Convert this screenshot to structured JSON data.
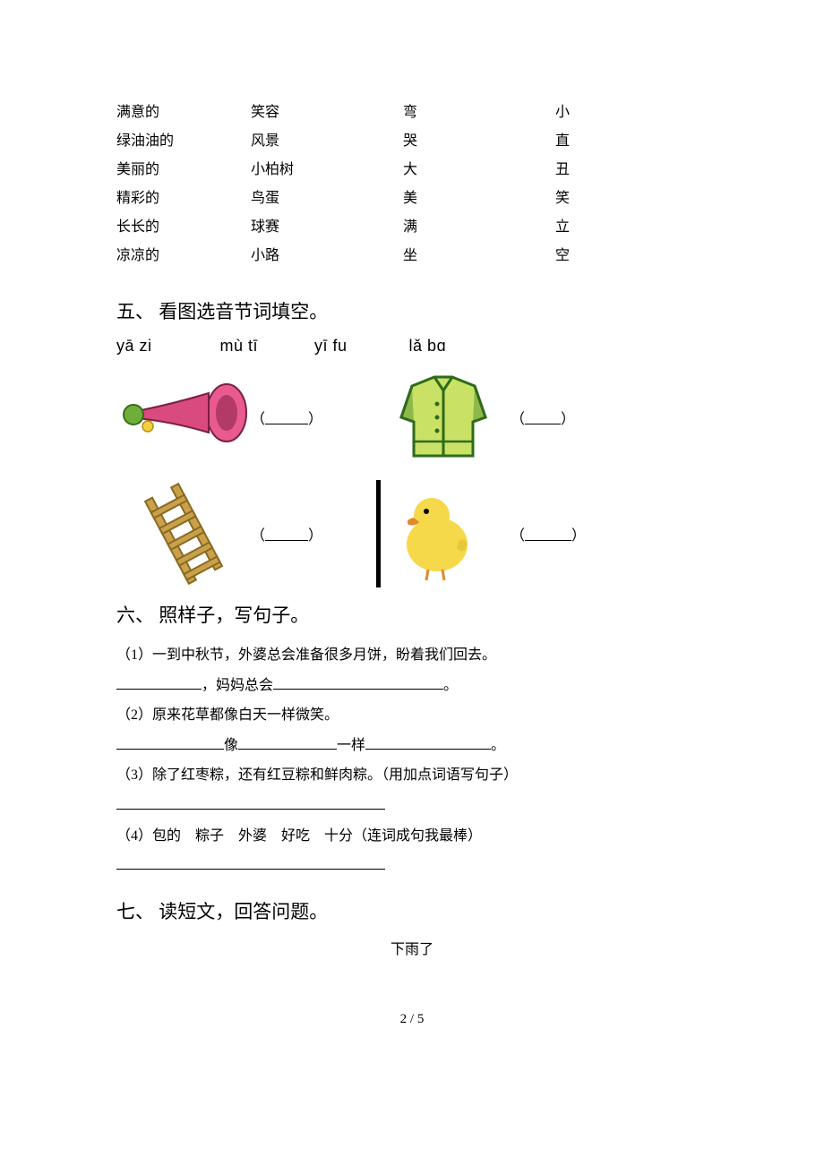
{
  "wordTable": {
    "rows": [
      {
        "c1": "满意的",
        "c2": "笑容",
        "c3": "弯",
        "c4": "小"
      },
      {
        "c1": "绿油油的",
        "c2": "风景",
        "c3": "哭",
        "c4": "直"
      },
      {
        "c1": "美丽的",
        "c2": "小柏树",
        "c3": "大",
        "c4": "丑"
      },
      {
        "c1": "精彩的",
        "c2": "鸟蛋",
        "c3": "美",
        "c4": "笑"
      },
      {
        "c1": "长长的",
        "c2": "球赛",
        "c3": "满",
        "c4": "立"
      },
      {
        "c1": "凉凉的",
        "c2": "小路",
        "c3": "坐",
        "c4": "空"
      }
    ]
  },
  "section5": {
    "heading": "五、 看图选音节词填空。",
    "pinyin": {
      "p1": "yā zi",
      "p2": "mù tī",
      "p3": "yī fu",
      "p4": "lǎ bɑ"
    },
    "images": {
      "trumpet": {
        "name": "trumpet-icon",
        "colors": {
          "bell": "#e95b8f",
          "body": "#d94a7e",
          "bulb": "#6fae3a",
          "bulb2": "#f4d03f"
        }
      },
      "jacket": {
        "name": "jacket-icon",
        "colors": {
          "fill": "#c9e265",
          "fold": "#8fb84a",
          "outline": "#2e6b1a"
        }
      },
      "ladder": {
        "name": "ladder-icon",
        "colors": {
          "wood": "#c8a14a",
          "edge": "#8a6a22"
        }
      },
      "duck": {
        "name": "duck-icon",
        "colors": {
          "body": "#f6d84b",
          "beak": "#e08a2a",
          "eye": "#000000",
          "bar": "#000000"
        }
      }
    },
    "blankWidths": {
      "b1": 48,
      "b2": 40,
      "b3": 48,
      "b4": 52
    }
  },
  "section6": {
    "heading": "六、 照样子，写句子。",
    "q1": {
      "text": "（1）一到中秋节，外婆总会准备很多月饼，盼着我们回去。",
      "line2_before": "",
      "line2_mid": "，妈妈总会",
      "line2_after": "。",
      "blank1_w": 95,
      "blank2_w": 190
    },
    "q2": {
      "text": "（2）原来花草都像白天一样微笑。",
      "part1": "像",
      "part2": "一样",
      "part3": "。",
      "blank1_w": 120,
      "blank2_w": 110,
      "blank3_w": 140
    },
    "q3": {
      "text": "（3）除了红枣粽，还有红豆粽和鲜肉粽。（用加点词语写句子）",
      "blank_w": 300
    },
    "q4": {
      "text": "（4）包的　粽子　外婆　好吃　十分（连词成句我最棒）",
      "blank_w": 300
    }
  },
  "section7": {
    "heading": "七、 读短文，回答问题。",
    "title": "下雨了"
  },
  "pageNumber": "2 / 5"
}
